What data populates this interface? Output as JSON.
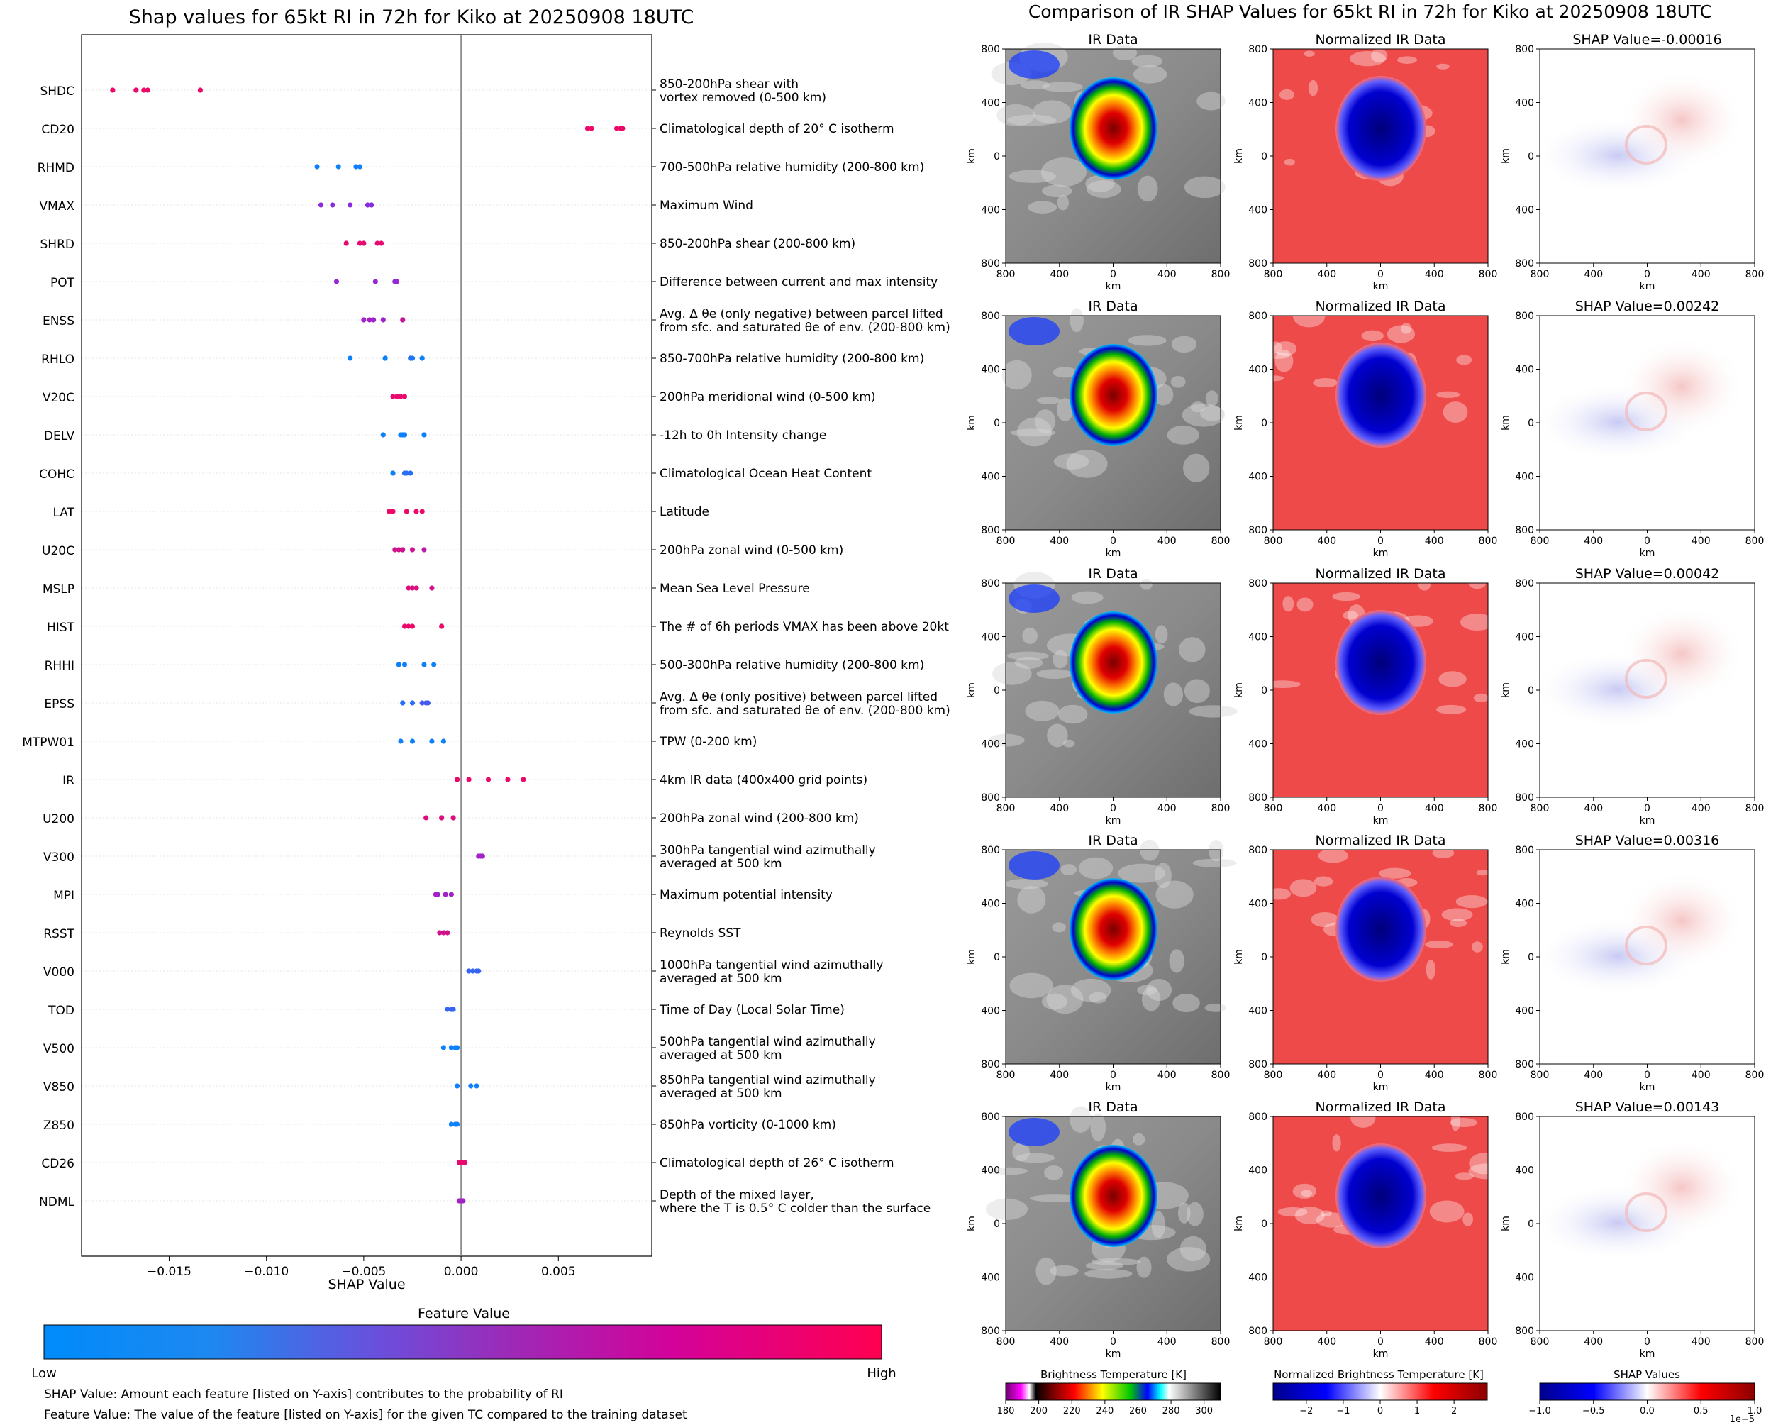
{
  "left": {
    "title": "Shap values for 65kt RI in 72h for Kiko at 20250908 18UTC",
    "xlabel": "SHAP Value",
    "colorbar_title": "Feature Value",
    "colorbar_low": "Low",
    "colorbar_high": "High",
    "footnote1": "SHAP Value: Amount each feature [listed on Y-axis] contributes to the probability of RI",
    "footnote2": "Feature Value: The value of the feature [listed on Y-axis] for the given TC compared to the training dataset"
  },
  "right": {
    "title": "Comparison of IR SHAP Values for 65kt RI in 72h for Kiko at 20250908 18UTC",
    "col_titles": [
      "IR Data",
      "Normalized IR Data"
    ],
    "shap_titles": [
      "SHAP Value=-0.00016",
      "SHAP Value=0.00242",
      "SHAP Value=0.00042",
      "SHAP Value=0.00316",
      "SHAP Value=0.00143"
    ],
    "axis_label": "km",
    "ticks": [
      "800",
      "400",
      "0",
      "400",
      "800"
    ],
    "cbar1_title": "Brightness Temperature [K]",
    "cbar1_ticks": [
      "180",
      "200",
      "220",
      "240",
      "260",
      "280",
      "300"
    ],
    "cbar2_title": "Normalized Brightness Temperature [K]",
    "cbar2_ticks": [
      "−2",
      "−1",
      "0",
      "1",
      "2"
    ],
    "cbar3_title": "SHAP Values",
    "cbar3_ticks": [
      "−1.0",
      "−0.5",
      "0.0",
      "0.5",
      "1.0"
    ],
    "cbar3_exponent": "1e−5"
  },
  "colors": {
    "low": "#008bfb",
    "mid": "#8a2be2",
    "high": "#ff0051"
  },
  "chart_data": {
    "type": "scatter",
    "xlim": [
      -0.0195,
      0.0098
    ],
    "xticks": [
      -0.015,
      -0.01,
      -0.005,
      0.0,
      0.005
    ],
    "xtick_labels": [
      "−0.015",
      "−0.010",
      "−0.005",
      "0.000",
      "0.005"
    ],
    "features": [
      {
        "name": "SHDC",
        "desc": "850-200hPa shear with\nvortex removed (0-500 km)",
        "points": [
          [
            -0.0179,
            0.92
          ],
          [
            -0.0167,
            0.92
          ],
          [
            -0.0163,
            0.92
          ],
          [
            -0.0161,
            0.92
          ],
          [
            -0.0134,
            0.92
          ]
        ]
      },
      {
        "name": "CD20",
        "desc": "Climatological depth of 20° C isotherm",
        "points": [
          [
            0.0065,
            0.92
          ],
          [
            0.0067,
            0.92
          ],
          [
            0.008,
            0.92
          ],
          [
            0.0082,
            0.92
          ],
          [
            0.0083,
            0.92
          ]
        ]
      },
      {
        "name": "RHMD",
        "desc": "700-500hPa relative humidity (200-800 km)",
        "points": [
          [
            -0.0074,
            0.05
          ],
          [
            -0.0063,
            0.05
          ],
          [
            -0.0054,
            0.05
          ],
          [
            -0.0052,
            0.05
          ]
        ]
      },
      {
        "name": "VMAX",
        "desc": "Maximum Wind",
        "points": [
          [
            -0.0072,
            0.5
          ],
          [
            -0.0066,
            0.5
          ],
          [
            -0.0057,
            0.5
          ],
          [
            -0.0048,
            0.5
          ],
          [
            -0.0046,
            0.5
          ]
        ]
      },
      {
        "name": "SHRD",
        "desc": "850-200hPa shear (200-800 km)",
        "points": [
          [
            -0.0059,
            0.9
          ],
          [
            -0.0052,
            0.9
          ],
          [
            -0.005,
            0.9
          ],
          [
            -0.0043,
            0.9
          ],
          [
            -0.0041,
            0.9
          ]
        ]
      },
      {
        "name": "POT",
        "desc": "Difference between current and max intensity",
        "points": [
          [
            -0.0064,
            0.55
          ],
          [
            -0.0044,
            0.55
          ],
          [
            -0.0034,
            0.55
          ],
          [
            -0.0033,
            0.55
          ]
        ]
      },
      {
        "name": "ENSS",
        "desc": "Avg. Δ θe (only negative) between parcel lifted\nfrom sfc. and saturated θe of env. (200-800 km)",
        "points": [
          [
            -0.005,
            0.6
          ],
          [
            -0.0047,
            0.6
          ],
          [
            -0.0045,
            0.6
          ],
          [
            -0.004,
            0.6
          ],
          [
            -0.003,
            0.75
          ]
        ]
      },
      {
        "name": "RHLO",
        "desc": "850-700hPa relative humidity (200-800 km)",
        "points": [
          [
            -0.0057,
            0.05
          ],
          [
            -0.0039,
            0.05
          ],
          [
            -0.0026,
            0.15
          ],
          [
            -0.0025,
            0.1
          ],
          [
            -0.002,
            0.05
          ]
        ]
      },
      {
        "name": "V20C",
        "desc": "200hPa meridional wind (0-500 km)",
        "points": [
          [
            -0.0035,
            0.9
          ],
          [
            -0.0033,
            0.9
          ],
          [
            -0.0031,
            0.9
          ],
          [
            -0.0029,
            0.9
          ]
        ]
      },
      {
        "name": "DELV",
        "desc": "-12h to 0h Intensity change",
        "points": [
          [
            -0.004,
            0.05
          ],
          [
            -0.0031,
            0.05
          ],
          [
            -0.003,
            0.05
          ],
          [
            -0.0029,
            0.05
          ],
          [
            -0.0019,
            0.05
          ]
        ]
      },
      {
        "name": "COHC",
        "desc": "Climatological Ocean Heat Content",
        "points": [
          [
            -0.0035,
            0.05
          ],
          [
            -0.0029,
            0.15
          ],
          [
            -0.0028,
            0.15
          ],
          [
            -0.0026,
            0.15
          ]
        ]
      },
      {
        "name": "LAT",
        "desc": "Latitude",
        "points": [
          [
            -0.0037,
            0.92
          ],
          [
            -0.0035,
            0.92
          ],
          [
            -0.0028,
            0.92
          ],
          [
            -0.0023,
            0.92
          ],
          [
            -0.002,
            0.92
          ]
        ]
      },
      {
        "name": "U20C",
        "desc": "200hPa zonal wind (0-500 km)",
        "points": [
          [
            -0.0034,
            0.8
          ],
          [
            -0.0032,
            0.8
          ],
          [
            -0.003,
            0.8
          ],
          [
            -0.0025,
            0.8
          ],
          [
            -0.0019,
            0.7
          ]
        ]
      },
      {
        "name": "MSLP",
        "desc": "Mean Sea Level Pressure",
        "points": [
          [
            -0.0027,
            0.85
          ],
          [
            -0.0025,
            0.85
          ],
          [
            -0.0023,
            0.85
          ],
          [
            -0.0015,
            0.8
          ]
        ]
      },
      {
        "name": "HIST",
        "desc": "The # of 6h periods VMAX has been above 20kt",
        "points": [
          [
            -0.0029,
            0.92
          ],
          [
            -0.0027,
            0.92
          ],
          [
            -0.0025,
            0.92
          ],
          [
            -0.001,
            0.92
          ]
        ]
      },
      {
        "name": "RHHI",
        "desc": "500-300hPa relative humidity (200-800 km)",
        "points": [
          [
            -0.0032,
            0.05
          ],
          [
            -0.0029,
            0.05
          ],
          [
            -0.0019,
            0.05
          ],
          [
            -0.0014,
            0.05
          ]
        ]
      },
      {
        "name": "EPSS",
        "desc": "Avg. Δ θe (only positive) between parcel lifted\nfrom sfc. and saturated θe of env. (200-800 km)",
        "points": [
          [
            -0.003,
            0.15
          ],
          [
            -0.0025,
            0.15
          ],
          [
            -0.002,
            0.25
          ],
          [
            -0.0018,
            0.25
          ],
          [
            -0.0017,
            0.25
          ]
        ]
      },
      {
        "name": "MTPW01",
        "desc": "TPW (0-200 km)",
        "points": [
          [
            -0.0031,
            0.05
          ],
          [
            -0.0025,
            0.05
          ],
          [
            -0.0015,
            0.05
          ],
          [
            -0.0009,
            0.05
          ]
        ]
      },
      {
        "name": "IR",
        "desc": "4km IR data (400x400 grid points)",
        "points": [
          [
            -0.0002,
            0.92
          ],
          [
            0.0004,
            0.92
          ],
          [
            0.0014,
            0.92
          ],
          [
            0.0024,
            0.92
          ],
          [
            0.0032,
            0.92
          ]
        ]
      },
      {
        "name": "U200",
        "desc": "200hPa zonal wind (200-800 km)",
        "points": [
          [
            -0.0018,
            0.85
          ],
          [
            -0.001,
            0.85
          ],
          [
            -0.0004,
            0.85
          ]
        ]
      },
      {
        "name": "V300",
        "desc": "300hPa tangential wind azimuthally\naveraged at 500 km",
        "points": [
          [
            0.0009,
            0.6
          ],
          [
            0.001,
            0.6
          ],
          [
            0.0011,
            0.6
          ]
        ]
      },
      {
        "name": "MPI",
        "desc": "Maximum potential intensity",
        "points": [
          [
            -0.0013,
            0.6
          ],
          [
            -0.0012,
            0.6
          ],
          [
            -0.0008,
            0.6
          ],
          [
            -0.0005,
            0.6
          ]
        ]
      },
      {
        "name": "RSST",
        "desc": "Reynolds SST",
        "points": [
          [
            -0.0011,
            0.8
          ],
          [
            -0.0009,
            0.8
          ],
          [
            -0.0007,
            0.8
          ]
        ]
      },
      {
        "name": "V000",
        "desc": "1000hPa tangential wind azimuthally\naveraged at 500 km",
        "points": [
          [
            0.0004,
            0.2
          ],
          [
            0.0006,
            0.2
          ],
          [
            0.0008,
            0.2
          ],
          [
            0.0009,
            0.2
          ]
        ]
      },
      {
        "name": "TOD",
        "desc": "Time of Day (Local Solar Time)",
        "points": [
          [
            -0.0007,
            0.2
          ],
          [
            -0.0005,
            0.2
          ],
          [
            -0.0004,
            0.2
          ]
        ]
      },
      {
        "name": "V500",
        "desc": "500hPa tangential wind azimuthally\naveraged at 500 km",
        "points": [
          [
            -0.0009,
            0.05
          ],
          [
            -0.0005,
            0.05
          ],
          [
            -0.0003,
            0.05
          ],
          [
            -0.0002,
            0.05
          ]
        ]
      },
      {
        "name": "V850",
        "desc": "850hPa tangential wind azimuthally\naveraged at 500 km",
        "points": [
          [
            -0.0002,
            0.05
          ],
          [
            0.0005,
            0.05
          ],
          [
            0.0008,
            0.05
          ]
        ]
      },
      {
        "name": "Z850",
        "desc": "850hPa vorticity (0-1000 km)",
        "points": [
          [
            -0.0005,
            0.05
          ],
          [
            -0.0003,
            0.05
          ],
          [
            -0.0002,
            0.05
          ]
        ]
      },
      {
        "name": "CD26",
        "desc": "Climatological depth of 26° C isotherm",
        "points": [
          [
            -0.0001,
            0.9
          ],
          [
            0.0,
            0.9
          ],
          [
            0.0001,
            0.9
          ],
          [
            0.0002,
            0.9
          ]
        ]
      },
      {
        "name": "NDML",
        "desc": "Depth of the mixed layer,\nwhere the T is 0.5° C colder than the surface",
        "points": [
          [
            -0.0001,
            0.6
          ],
          [
            0.0,
            0.6
          ],
          [
            0.0001,
            0.6
          ]
        ]
      }
    ]
  }
}
